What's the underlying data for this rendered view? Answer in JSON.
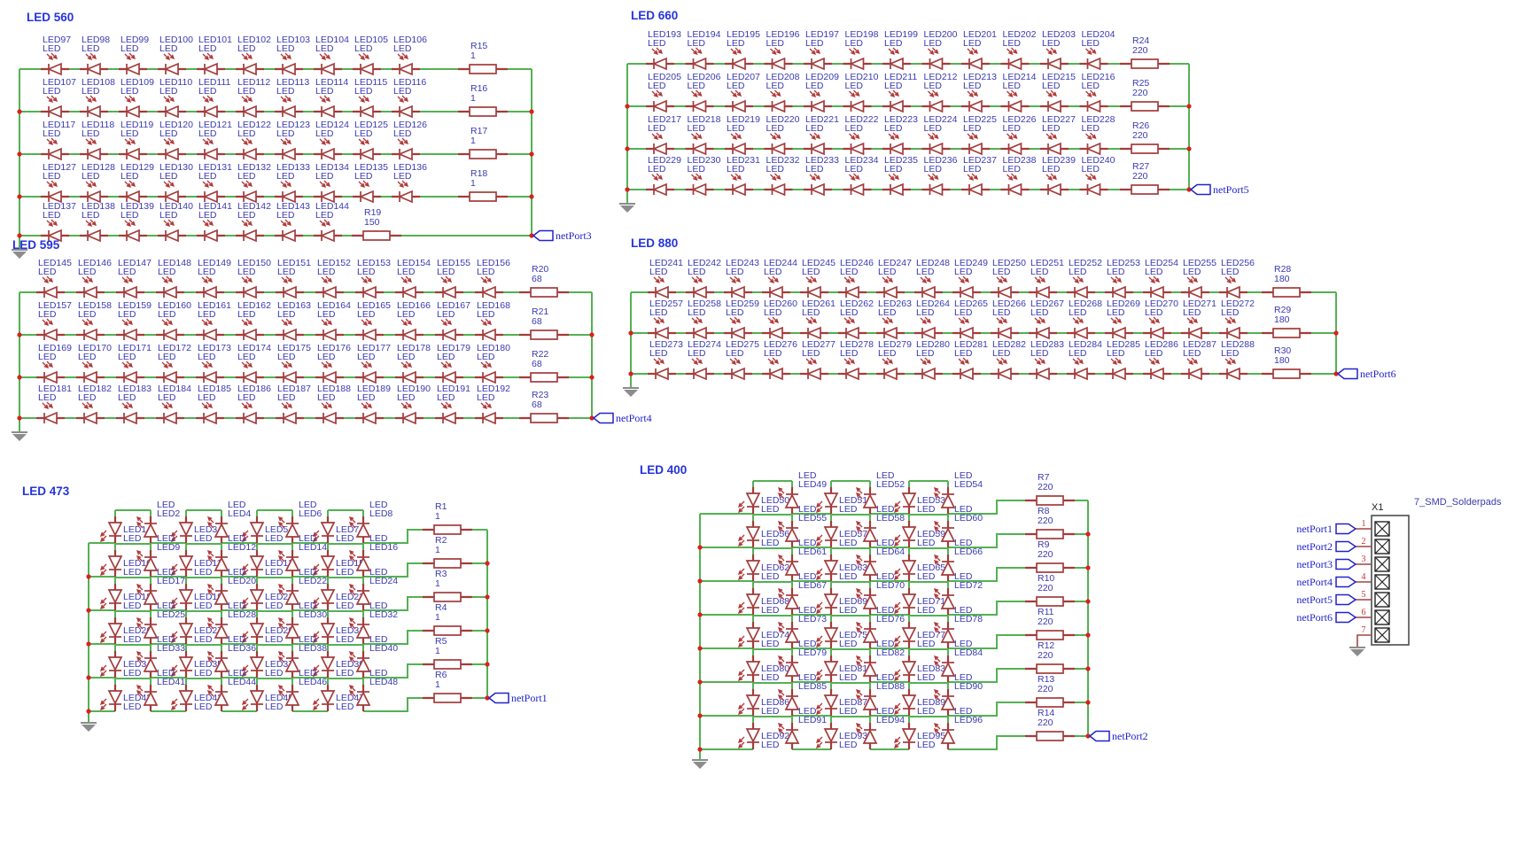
{
  "led_sub_label": "LED",
  "colors": {
    "wire": "#53B153",
    "symbol": "#A33B3B",
    "junction_dot": "#DC1F1F",
    "component_label": "#3A3AB2",
    "block_title": "#2533DB",
    "net_port": "#2222CC",
    "pin_wire": "#A34444",
    "pin_number": "#C03434",
    "connector_outline": "#4D4D4D",
    "ground": "#8C8C8C",
    "background": "#FFFFFF"
  },
  "blocks": [
    {
      "id": "led560",
      "title": "LED 560",
      "style": "ladder",
      "port": "netPort3",
      "rows": [
        {
          "res": "R15",
          "val": "1",
          "leds": [
            "LED97",
            "LED98",
            "LED99",
            "LED100",
            "LED101",
            "LED102",
            "LED103",
            "LED104",
            "LED105",
            "LED106"
          ]
        },
        {
          "res": "R16",
          "val": "1",
          "leds": [
            "LED107",
            "LED108",
            "LED109",
            "LED110",
            "LED111",
            "LED112",
            "LED113",
            "LED114",
            "LED115",
            "LED116"
          ]
        },
        {
          "res": "R17",
          "val": "1",
          "leds": [
            "LED117",
            "LED118",
            "LED119",
            "LED120",
            "LED121",
            "LED122",
            "LED123",
            "LED124",
            "LED125",
            "LED126"
          ]
        },
        {
          "res": "R18",
          "val": "1",
          "leds": [
            "LED127",
            "LED128",
            "LED129",
            "LED130",
            "LED131",
            "LED132",
            "LED133",
            "LED134",
            "LED135",
            "LED136"
          ]
        },
        {
          "res": "R19",
          "val": "150",
          "leds": [
            "LED137",
            "LED138",
            "LED139",
            "LED140",
            "LED141",
            "LED142",
            "LED143",
            "LED144"
          ]
        }
      ]
    },
    {
      "id": "led595",
      "title": "LED 595",
      "style": "ladder",
      "port": "netPort4",
      "rows": [
        {
          "res": "R20",
          "val": "68",
          "leds": [
            "LED145",
            "LED146",
            "LED147",
            "LED148",
            "LED149",
            "LED150",
            "LED151",
            "LED152",
            "LED153",
            "LED154",
            "LED155",
            "LED156"
          ]
        },
        {
          "res": "R21",
          "val": "68",
          "leds": [
            "LED157",
            "LED158",
            "LED159",
            "LED160",
            "LED161",
            "LED162",
            "LED163",
            "LED164",
            "LED165",
            "LED166",
            "LED167",
            "LED168"
          ]
        },
        {
          "res": "R22",
          "val": "68",
          "leds": [
            "LED169",
            "LED170",
            "LED171",
            "LED172",
            "LED173",
            "LED174",
            "LED175",
            "LED176",
            "LED177",
            "LED178",
            "LED179",
            "LED180"
          ]
        },
        {
          "res": "R23",
          "val": "68",
          "leds": [
            "LED181",
            "LED182",
            "LED183",
            "LED184",
            "LED185",
            "LED186",
            "LED187",
            "LED188",
            "LED189",
            "LED190",
            "LED191",
            "LED192"
          ]
        }
      ]
    },
    {
      "id": "led660",
      "title": "LED 660",
      "style": "ladder",
      "port": "netPort5",
      "rows": [
        {
          "res": "R24",
          "val": "220",
          "leds": [
            "LED193",
            "LED194",
            "LED195",
            "LED196",
            "LED197",
            "LED198",
            "LED199",
            "LED200",
            "LED201",
            "LED202",
            "LED203",
            "LED204"
          ]
        },
        {
          "res": "R25",
          "val": "220",
          "leds": [
            "LED205",
            "LED206",
            "LED207",
            "LED208",
            "LED209",
            "LED210",
            "LED211",
            "LED212",
            "LED213",
            "LED214",
            "LED215",
            "LED216"
          ]
        },
        {
          "res": "R26",
          "val": "220",
          "leds": [
            "LED217",
            "LED218",
            "LED219",
            "LED220",
            "LED221",
            "LED222",
            "LED223",
            "LED224",
            "LED225",
            "LED226",
            "LED227",
            "LED228"
          ]
        },
        {
          "res": "R27",
          "val": "220",
          "leds": [
            "LED229",
            "LED230",
            "LED231",
            "LED232",
            "LED233",
            "LED234",
            "LED235",
            "LED236",
            "LED237",
            "LED238",
            "LED239",
            "LED240"
          ]
        }
      ]
    },
    {
      "id": "led880",
      "title": "LED 880",
      "style": "ladder",
      "port": "netPort6",
      "rows": [
        {
          "res": "R28",
          "val": "180",
          "leds": [
            "LED241",
            "LED242",
            "LED243",
            "LED244",
            "LED245",
            "LED246",
            "LED247",
            "LED248",
            "LED249",
            "LED250",
            "LED251",
            "LED252",
            "LED253",
            "LED254",
            "LED255",
            "LED256"
          ]
        },
        {
          "res": "R29",
          "val": "180",
          "leds": [
            "LED257",
            "LED258",
            "LED259",
            "LED260",
            "LED261",
            "LED262",
            "LED263",
            "LED264",
            "LED265",
            "LED266",
            "LED267",
            "LED268",
            "LED269",
            "LED270",
            "LED271",
            "LED272"
          ]
        },
        {
          "res": "R30",
          "val": "180",
          "leds": [
            "LED273",
            "LED274",
            "LED275",
            "LED276",
            "LED277",
            "LED278",
            "LED279",
            "LED280",
            "LED281",
            "LED282",
            "LED283",
            "LED284",
            "LED285",
            "LED286",
            "LED287",
            "LED288"
          ]
        }
      ]
    },
    {
      "id": "led473",
      "title": "LED 473",
      "style": "zigzag",
      "port": "netPort1",
      "rows": [
        {
          "res": "R1",
          "val": "1",
          "leds": [
            "LED1",
            "LED2",
            "LED3",
            "LED4",
            "LED5",
            "LED6",
            "LED7",
            "LED8"
          ]
        },
        {
          "res": "R2",
          "val": "1",
          "leds": [
            "LED10",
            "LED9",
            "LED11",
            "LED12",
            "LED13",
            "LED14",
            "LED15",
            "LED16"
          ]
        },
        {
          "res": "R3",
          "val": "1",
          "leds": [
            "LED18",
            "LED17",
            "LED19",
            "LED20",
            "LED21",
            "LED22",
            "LED23",
            "LED24"
          ]
        },
        {
          "res": "R4",
          "val": "1",
          "leds": [
            "LED26",
            "LED25",
            "LED27",
            "LED28",
            "LED29",
            "LED30",
            "LED31",
            "LED32"
          ]
        },
        {
          "res": "R5",
          "val": "1",
          "leds": [
            "LED34",
            "LED33",
            "LED35",
            "LED36",
            "LED37",
            "LED38",
            "LED39",
            "LED40"
          ]
        },
        {
          "res": "R6",
          "val": "1",
          "leds": [
            "LED42",
            "LED41",
            "LED43",
            "LED44",
            "LED45",
            "LED46",
            "LED47",
            "LED48"
          ]
        }
      ]
    },
    {
      "id": "led400",
      "title": "LED 400",
      "style": "zigzag",
      "port": "netPort2",
      "rows": [
        {
          "res": "R7",
          "val": "220",
          "leds": [
            "LED50",
            "LED49",
            "LED51",
            "LED52",
            "LED53",
            "LED54"
          ]
        },
        {
          "res": "R8",
          "val": "220",
          "leds": [
            "LED56",
            "LED55",
            "LED57",
            "LED58",
            "LED59",
            "LED60"
          ]
        },
        {
          "res": "R9",
          "val": "220",
          "leds": [
            "LED62",
            "LED61",
            "LED63",
            "LED64",
            "LED65",
            "LED66"
          ]
        },
        {
          "res": "R10",
          "val": "220",
          "leds": [
            "LED68",
            "LED67",
            "LED69",
            "LED70",
            "LED71",
            "LED72"
          ]
        },
        {
          "res": "R11",
          "val": "220",
          "leds": [
            "LED74",
            "LED73",
            "LED75",
            "LED76",
            "LED77",
            "LED78"
          ]
        },
        {
          "res": "R12",
          "val": "220",
          "leds": [
            "LED80",
            "LED79",
            "LED81",
            "LED82",
            "LED83",
            "LED84"
          ]
        },
        {
          "res": "R13",
          "val": "220",
          "leds": [
            "LED86",
            "LED85",
            "LED87",
            "LED88",
            "LED89",
            "LED90"
          ]
        },
        {
          "res": "R14",
          "val": "220",
          "leds": [
            "LED92",
            "LED91",
            "LED93",
            "LED94",
            "LED95",
            "LED96"
          ]
        }
      ]
    }
  ],
  "connector": {
    "ref": "X1",
    "title": "7_SMD_Solderpads",
    "pins": [
      {
        "number": "1",
        "port": "netPort1"
      },
      {
        "number": "2",
        "port": "netPort2"
      },
      {
        "number": "3",
        "port": "netPort3"
      },
      {
        "number": "4",
        "port": "netPort4"
      },
      {
        "number": "5",
        "port": "netPort5"
      },
      {
        "number": "6",
        "port": "netPort6"
      },
      {
        "number": "7",
        "port": ""
      }
    ]
  }
}
